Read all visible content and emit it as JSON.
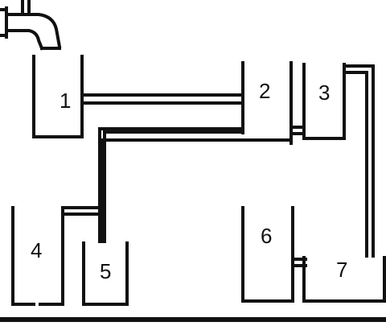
{
  "containers": [
    {
      "id": "1",
      "label": "1"
    },
    {
      "id": "2",
      "label": "2"
    },
    {
      "id": "3",
      "label": "3"
    },
    {
      "id": "4",
      "label": "4"
    },
    {
      "id": "5",
      "label": "5"
    },
    {
      "id": "6",
      "label": "6"
    },
    {
      "id": "7",
      "label": "7"
    }
  ],
  "colors": {
    "line": "#111111",
    "background": "#ffffff"
  }
}
